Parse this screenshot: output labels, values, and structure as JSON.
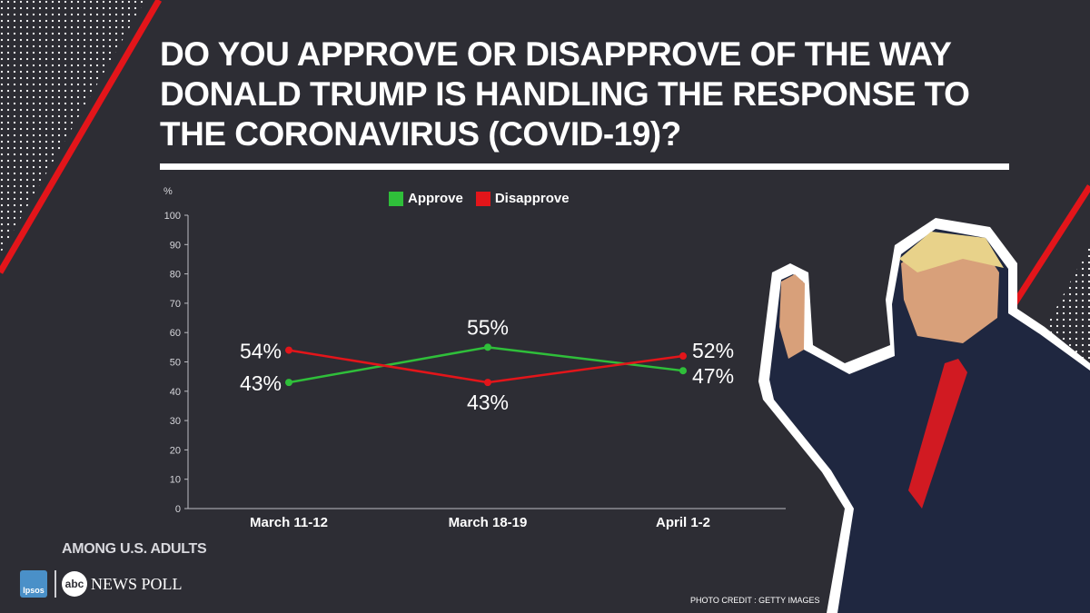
{
  "title": "DO YOU APPROVE OR DISAPPROVE OF THE WAY DONALD TRUMP IS HANDLING THE RESPONSE TO THE CORONAVIRUS (COVID-19)?",
  "subtitle": "AMONG U.S. ADULTS",
  "branding": {
    "ipsos": "Ipsos",
    "abc": "abc",
    "news_poll": "NEWS POLL"
  },
  "photo_credit": "PHOTO CREDIT : GETTY IMAGES",
  "colors": {
    "approve": "#2fbf3a",
    "disapprove": "#e3151a",
    "background": "#2d2d34",
    "accent_red": "#e3151a"
  },
  "chart_data": {
    "type": "line",
    "ylabel": "%",
    "ylim": [
      0,
      100
    ],
    "yticks": [
      0,
      10,
      20,
      30,
      40,
      50,
      60,
      70,
      80,
      90,
      100
    ],
    "categories": [
      "March 11-12",
      "March 18-19",
      "April 1-2"
    ],
    "series": [
      {
        "name": "Approve",
        "values": [
          43,
          55,
          47
        ],
        "labels": [
          "43%",
          "55%",
          "47%"
        ],
        "color": "#2fbf3a"
      },
      {
        "name": "Disapprove",
        "values": [
          54,
          43,
          52
        ],
        "labels": [
          "54%",
          "43%",
          "52%"
        ],
        "color": "#e3151a"
      }
    ],
    "legend": "top-center",
    "grid": false
  }
}
